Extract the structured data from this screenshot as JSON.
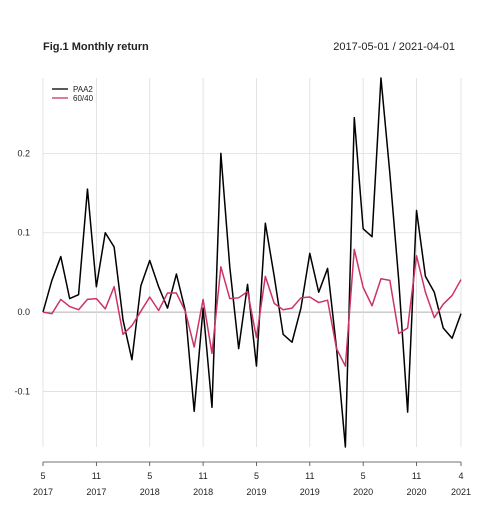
{
  "chart_data": {
    "type": "line",
    "title": "Fig.1 Monthly return",
    "date_range": "2017-05-01 / 2021-04-01",
    "xlabel": "",
    "ylabel": "",
    "ylim": [
      -0.17,
      0.295
    ],
    "y_ticks": [
      -0.1,
      0.0,
      0.1,
      0.2
    ],
    "y_tick_labels": [
      "-0.1",
      "0.0",
      "0.1",
      "0.2"
    ],
    "x_ticks": [
      {
        "month": "5",
        "year": "2017"
      },
      {
        "month": "11",
        "year": "2017"
      },
      {
        "month": "5",
        "year": "2018"
      },
      {
        "month": "11",
        "year": "2018"
      },
      {
        "month": "5",
        "year": "2019"
      },
      {
        "month": "11",
        "year": "2019"
      },
      {
        "month": "5",
        "year": "2020"
      },
      {
        "month": "11",
        "year": "2020"
      },
      {
        "month": "4",
        "year": "2021"
      }
    ],
    "grid": true,
    "legend_position": "top-left",
    "categories": [
      "2017-05",
      "2017-06",
      "2017-07",
      "2017-08",
      "2017-09",
      "2017-10",
      "2017-11",
      "2017-12",
      "2018-01",
      "2018-02",
      "2018-03",
      "2018-04",
      "2018-05",
      "2018-06",
      "2018-07",
      "2018-08",
      "2018-09",
      "2018-10",
      "2018-11",
      "2018-12",
      "2019-01",
      "2019-02",
      "2019-03",
      "2019-04",
      "2019-05",
      "2019-06",
      "2019-07",
      "2019-08",
      "2019-09",
      "2019-10",
      "2019-11",
      "2019-12",
      "2020-01",
      "2020-02",
      "2020-03",
      "2020-04",
      "2020-05",
      "2020-06",
      "2020-07",
      "2020-08",
      "2020-09",
      "2020-10",
      "2020-11",
      "2020-12",
      "2021-01",
      "2021-02",
      "2021-03",
      "2021-04"
    ],
    "series": [
      {
        "name": "PAA2",
        "color": "#000000",
        "values": [
          0.0,
          0.04,
          0.07,
          0.017,
          0.022,
          0.155,
          0.032,
          0.1,
          0.082,
          -0.01,
          -0.06,
          0.033,
          0.065,
          0.032,
          0.005,
          0.048,
          0.002,
          -0.125,
          0.005,
          -0.12,
          0.2,
          0.057,
          -0.046,
          0.035,
          -0.068,
          0.112,
          0.045,
          -0.028,
          -0.038,
          0.005,
          0.074,
          0.025,
          0.055,
          -0.045,
          -0.17,
          0.245,
          0.105,
          0.095,
          0.295,
          0.175,
          0.04,
          -0.126,
          0.128,
          0.045,
          0.025,
          -0.02,
          -0.033,
          -0.002
        ]
      },
      {
        "name": "60/40",
        "color": "#cc3366",
        "values": [
          0.0,
          -0.002,
          0.016,
          0.007,
          0.003,
          0.016,
          0.017,
          0.004,
          0.032,
          -0.028,
          -0.017,
          0.001,
          0.019,
          0.002,
          0.024,
          0.024,
          0.001,
          -0.044,
          0.016,
          -0.052,
          0.057,
          0.017,
          0.018,
          0.026,
          -0.032,
          0.045,
          0.011,
          0.003,
          0.005,
          0.018,
          0.019,
          0.012,
          0.015,
          -0.046,
          -0.068,
          0.079,
          0.031,
          0.008,
          0.042,
          0.04,
          -0.027,
          -0.02,
          0.071,
          0.025,
          -0.007,
          0.01,
          0.021,
          0.041
        ]
      }
    ]
  }
}
